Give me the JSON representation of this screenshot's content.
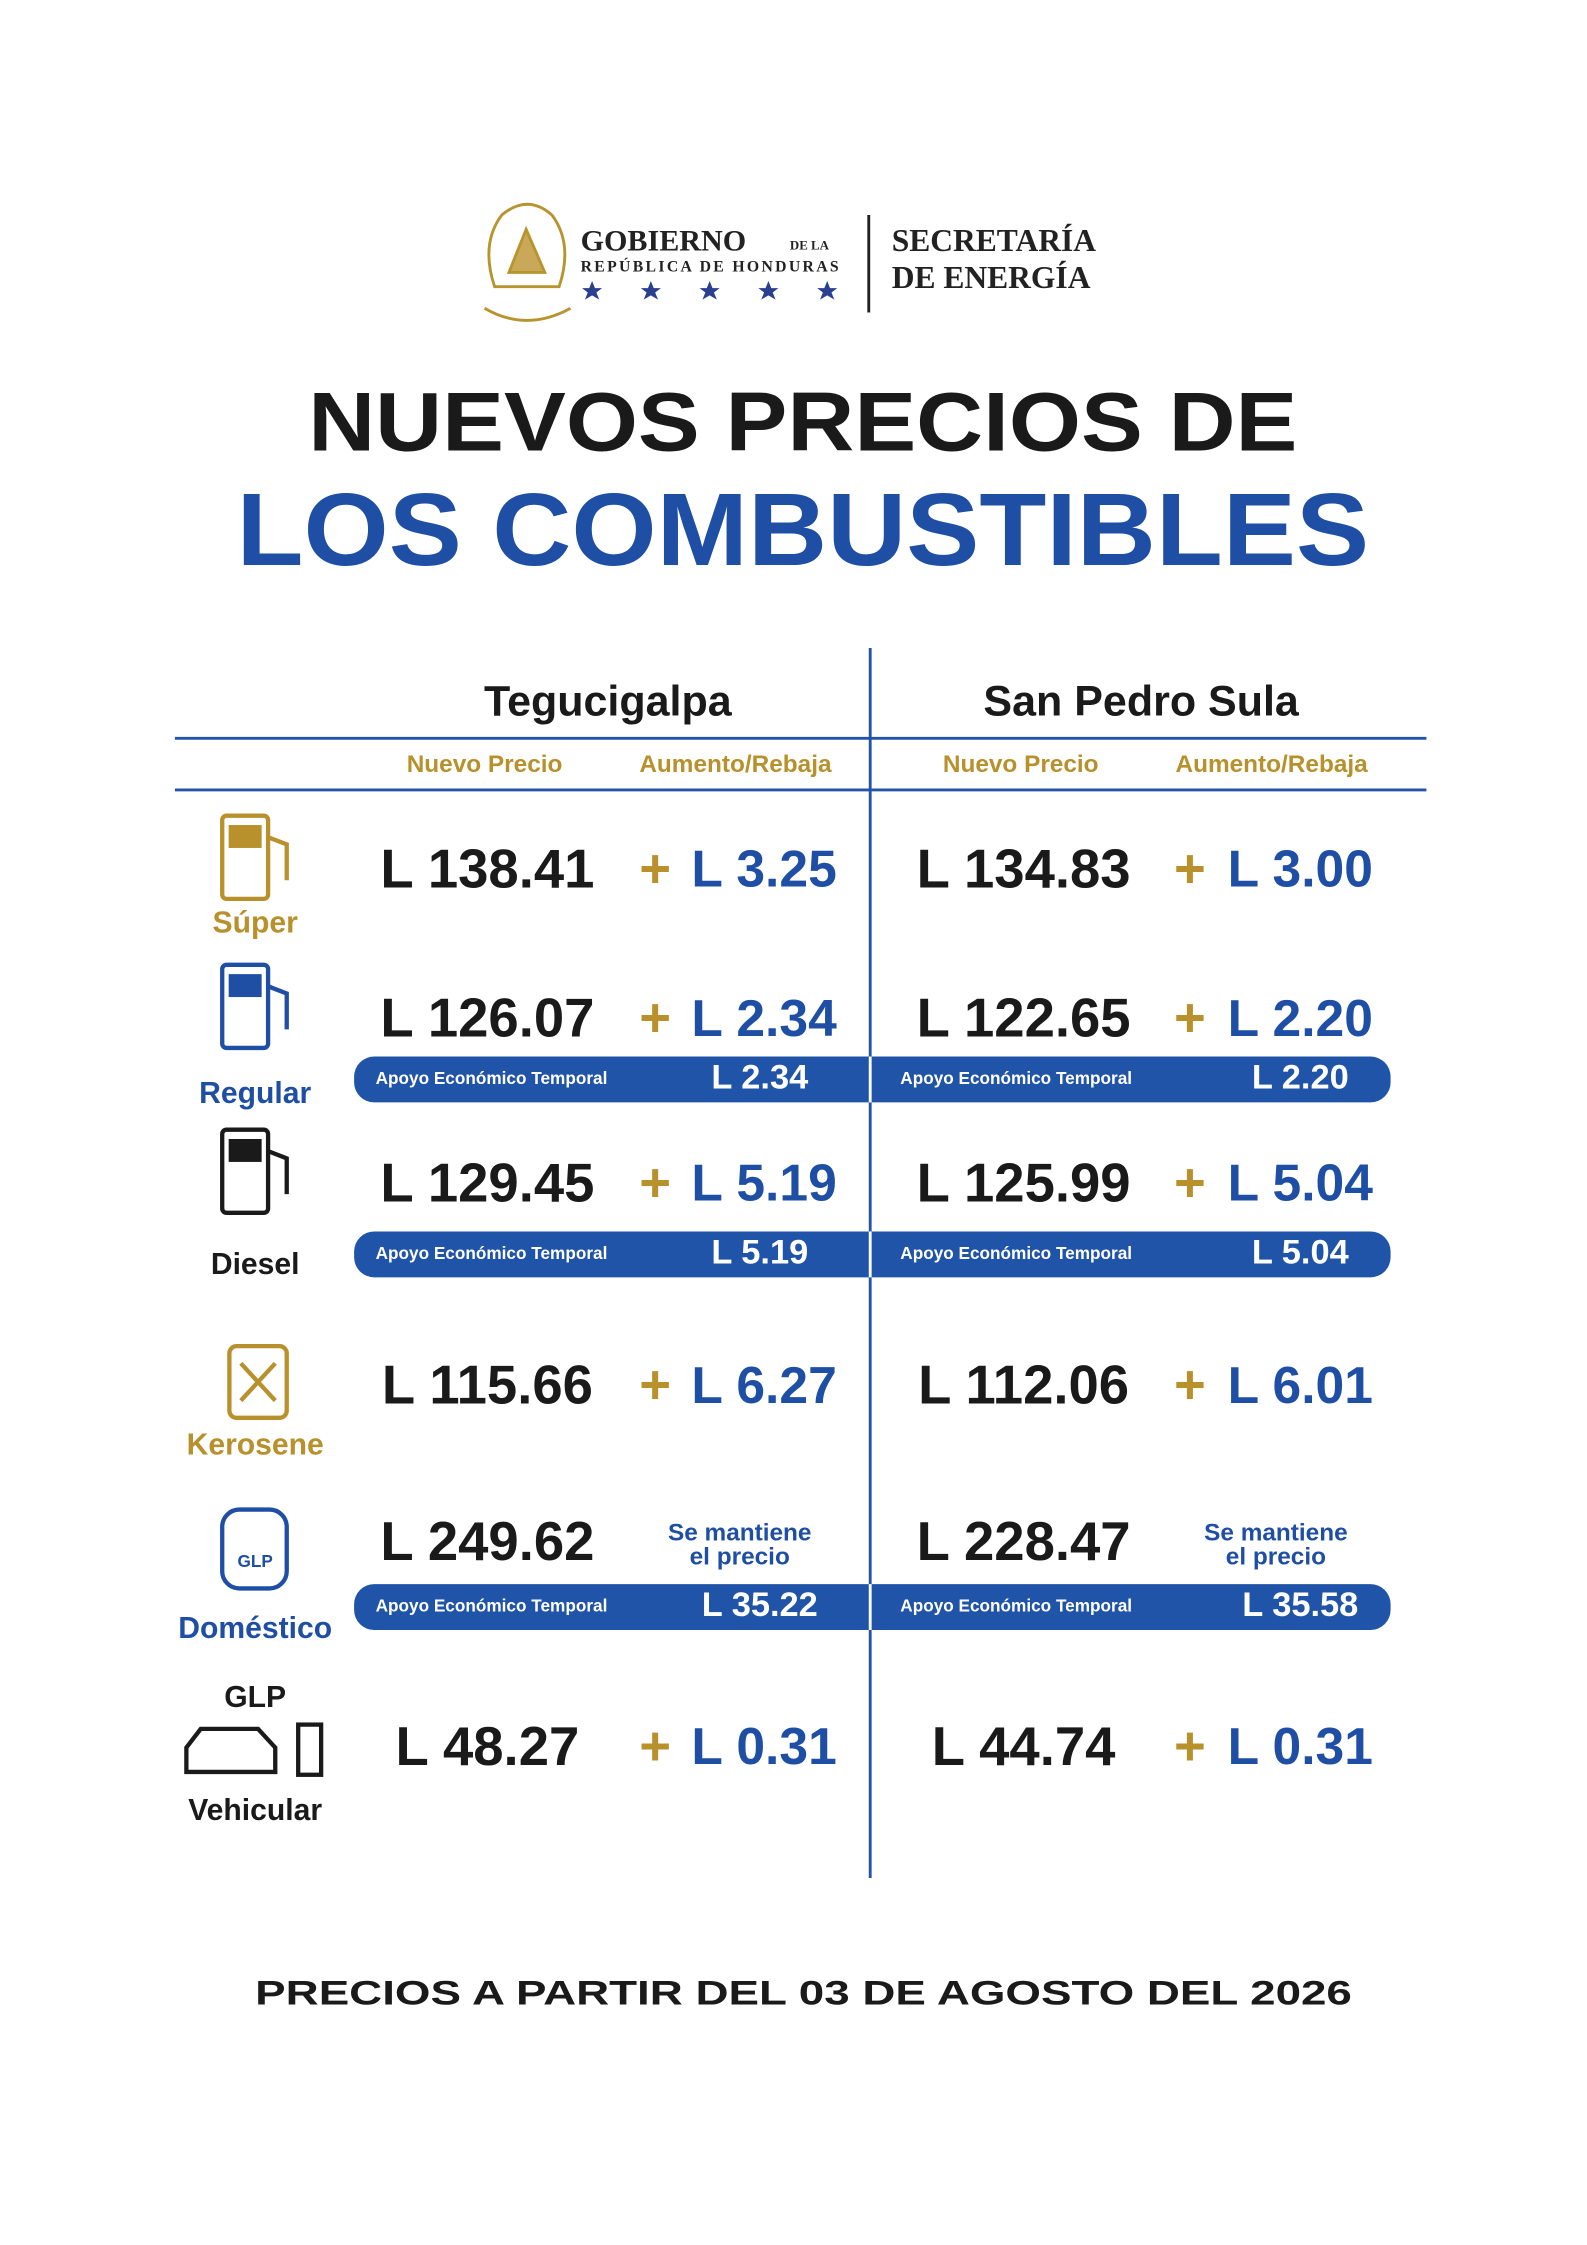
{
  "header": {
    "gobierno": "GOBIERNO",
    "de_la": "DE LA",
    "republica": "REPÚBLICA DE HONDURAS",
    "secretaria": "SECRETARÍA",
    "de_energia": "DE ENERGÍA"
  },
  "title": {
    "line1": "NUEVOS PRECIOS DE",
    "line2": "LOS COMBUSTIBLES"
  },
  "table": {
    "cities": [
      "Tegucigalpa",
      "San Pedro Sula"
    ],
    "columns": [
      "Nuevo Precio",
      "Aumento/Rebaja"
    ],
    "support_label": "Apoyo Económico Temporal",
    "rows": [
      {
        "label": [
          "Súper"
        ],
        "cities": [
          {
            "price": "L 138.41",
            "sign": "+",
            "change": "L 3.25"
          },
          {
            "price": "L 134.83",
            "sign": "+",
            "change": "L 3.00"
          }
        ]
      },
      {
        "label": [
          "Regular"
        ],
        "cities": [
          {
            "price": "L 126.07",
            "sign": "+",
            "change": "L 2.34",
            "support": "L 2.34"
          },
          {
            "price": "L 122.65",
            "sign": "+",
            "change": "L 2.20",
            "support": "L 2.20"
          }
        ]
      },
      {
        "label": [
          "Diesel"
        ],
        "cities": [
          {
            "price": "L 129.45",
            "sign": "+",
            "change": "L 5.19",
            "support": "L 5.19"
          },
          {
            "price": "L 125.99",
            "sign": "+",
            "change": "L 5.04",
            "support": "L 5.04"
          }
        ]
      },
      {
        "label": [
          "Kerosene"
        ],
        "cities": [
          {
            "price": "L 115.66",
            "sign": "+",
            "change": "L 6.27"
          },
          {
            "price": "L 112.06",
            "sign": "+",
            "change": "L 6.01"
          }
        ]
      },
      {
        "label": [
          "Doméstico"
        ],
        "icon_text": "GLP",
        "cities": [
          {
            "price": "L 249.62",
            "note": [
              "Se mantiene",
              "el precio"
            ],
            "support": "L 35.22"
          },
          {
            "price": "L 228.47",
            "note": [
              "Se mantiene",
              "el precio"
            ],
            "support": "L 35.58"
          }
        ]
      },
      {
        "label": [
          "GLP",
          "Vehicular"
        ],
        "cities": [
          {
            "price": "L 48.27",
            "sign": "+",
            "change": "L 0.31"
          },
          {
            "price": "L 44.74",
            "sign": "+",
            "change": "L 0.31"
          }
        ]
      }
    ]
  },
  "footer": "PRECIOS A PARTIR DEL 03 DE AGOSTO DEL 2026"
}
